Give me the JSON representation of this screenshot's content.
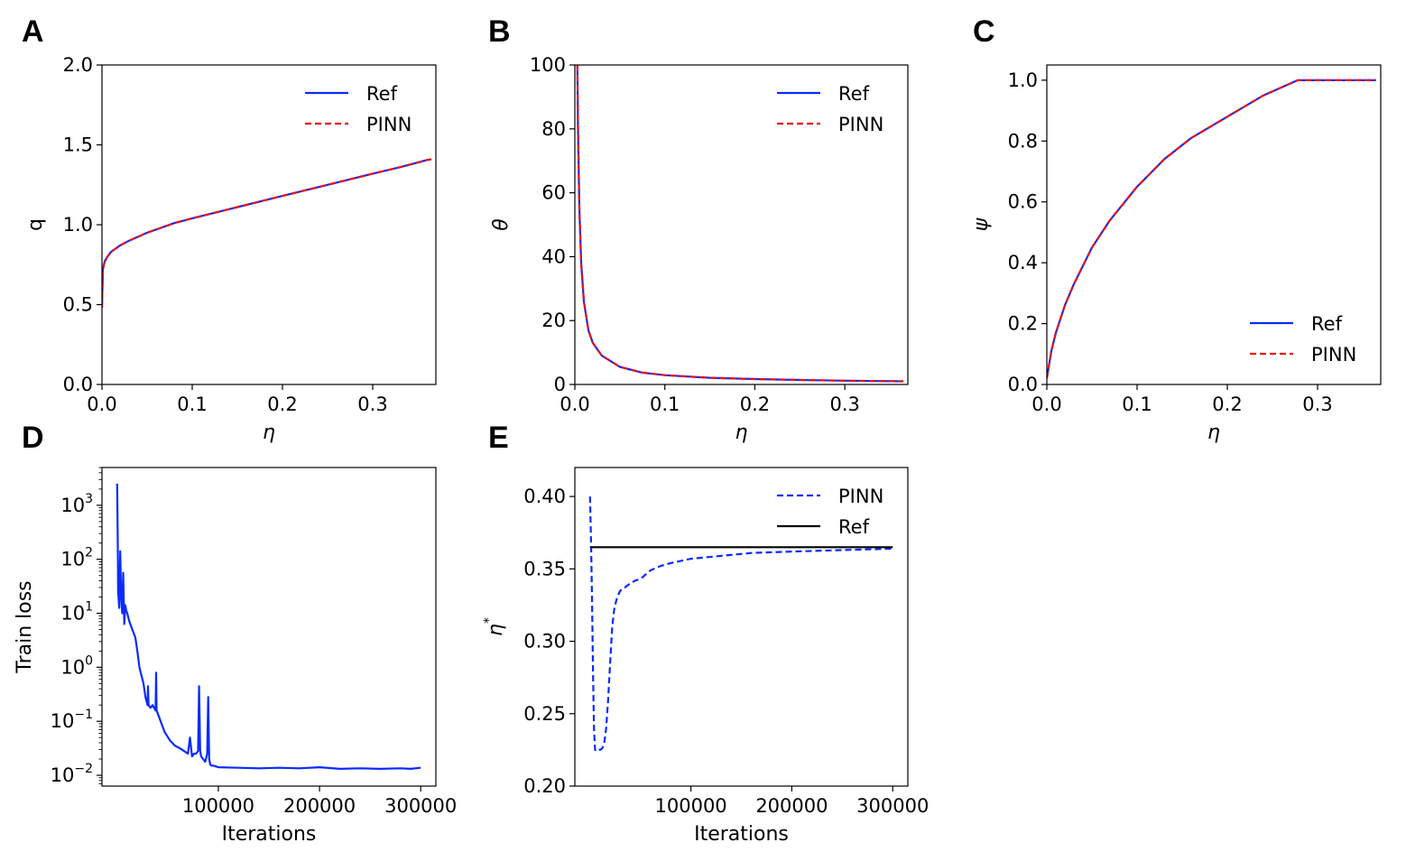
{
  "colors": {
    "ref": "#0a2bff",
    "pinn": "#e8101a",
    "black": "#000000"
  },
  "chart_data": [
    {
      "id": "A",
      "panel_label": "A",
      "type": "line",
      "xlabel": "η",
      "ylabel": "q",
      "xlim": [
        0,
        0.37
      ],
      "ylim": [
        0,
        2.0
      ],
      "xticks": [
        0.0,
        0.1,
        0.2,
        0.3
      ],
      "xtick_labels": [
        "0.0",
        "0.1",
        "0.2",
        "0.3"
      ],
      "yticks": [
        0.0,
        0.5,
        1.0,
        1.5,
        2.0
      ],
      "ytick_labels": [
        "0.0",
        "0.5",
        "1.0",
        "1.5",
        "2.0"
      ],
      "legend": [
        "Ref",
        "PINN"
      ],
      "legend_position": "top-right",
      "series": [
        {
          "name": "Ref",
          "style": "solid",
          "x": [
            0,
            0.001,
            0.003,
            0.006,
            0.01,
            0.02,
            0.03,
            0.05,
            0.08,
            0.1,
            0.15,
            0.2,
            0.25,
            0.3,
            0.33,
            0.35,
            0.36,
            0.365
          ],
          "y": [
            0.48,
            0.72,
            0.77,
            0.8,
            0.83,
            0.87,
            0.9,
            0.95,
            1.01,
            1.04,
            1.11,
            1.18,
            1.25,
            1.32,
            1.36,
            1.39,
            1.405,
            1.41
          ]
        },
        {
          "name": "PINN",
          "style": "dashed",
          "x": [
            0,
            0.001,
            0.003,
            0.006,
            0.01,
            0.02,
            0.03,
            0.05,
            0.08,
            0.1,
            0.15,
            0.2,
            0.25,
            0.3,
            0.33,
            0.35,
            0.36,
            0.365
          ],
          "y": [
            0.48,
            0.72,
            0.77,
            0.8,
            0.83,
            0.87,
            0.9,
            0.95,
            1.01,
            1.04,
            1.11,
            1.18,
            1.25,
            1.32,
            1.36,
            1.39,
            1.405,
            1.41
          ]
        }
      ]
    },
    {
      "id": "B",
      "panel_label": "B",
      "type": "line",
      "xlabel": "η",
      "ylabel": "θ",
      "xlim": [
        0,
        0.37
      ],
      "ylim": [
        0,
        100
      ],
      "xticks": [
        0.0,
        0.1,
        0.2,
        0.3
      ],
      "xtick_labels": [
        "0.0",
        "0.1",
        "0.2",
        "0.3"
      ],
      "yticks": [
        0,
        20,
        40,
        60,
        80,
        100
      ],
      "ytick_labels": [
        "0",
        "20",
        "40",
        "60",
        "80",
        "100"
      ],
      "legend": [
        "Ref",
        "PINN"
      ],
      "legend_position": "top-right",
      "series": [
        {
          "name": "Ref",
          "style": "solid",
          "x": [
            0.0028,
            0.0035,
            0.005,
            0.007,
            0.01,
            0.015,
            0.02,
            0.03,
            0.05,
            0.075,
            0.1,
            0.15,
            0.2,
            0.25,
            0.3,
            0.365
          ],
          "y": [
            100,
            80,
            55,
            38,
            26,
            17,
            13,
            9,
            5.5,
            3.7,
            2.9,
            2.1,
            1.7,
            1.4,
            1.2,
            1.0
          ]
        },
        {
          "name": "PINN",
          "style": "dashed",
          "x": [
            0.0028,
            0.0035,
            0.005,
            0.007,
            0.01,
            0.015,
            0.02,
            0.03,
            0.05,
            0.075,
            0.1,
            0.15,
            0.2,
            0.25,
            0.3,
            0.365
          ],
          "y": [
            100,
            80,
            55,
            38,
            26,
            17,
            13,
            9,
            5.5,
            3.7,
            2.9,
            2.1,
            1.7,
            1.4,
            1.2,
            1.0
          ]
        }
      ]
    },
    {
      "id": "C",
      "panel_label": "C",
      "type": "line",
      "xlabel": "η",
      "ylabel": "ψ",
      "xlim": [
        0,
        0.37
      ],
      "ylim": [
        0,
        1.05
      ],
      "xticks": [
        0.0,
        0.1,
        0.2,
        0.3
      ],
      "xtick_labels": [
        "0.0",
        "0.1",
        "0.2",
        "0.3"
      ],
      "yticks": [
        0.0,
        0.2,
        0.4,
        0.6,
        0.8,
        1.0
      ],
      "ytick_labels": [
        "0.0",
        "0.2",
        "0.4",
        "0.6",
        "0.8",
        "1.0"
      ],
      "legend": [
        "Ref",
        "PINN"
      ],
      "legend_position": "bottom-right",
      "series": [
        {
          "name": "Ref",
          "style": "solid",
          "x": [
            0,
            0.005,
            0.01,
            0.02,
            0.03,
            0.05,
            0.07,
            0.1,
            0.13,
            0.16,
            0.2,
            0.24,
            0.278,
            0.3,
            0.33,
            0.365
          ],
          "y": [
            0.02,
            0.11,
            0.17,
            0.26,
            0.33,
            0.45,
            0.54,
            0.65,
            0.74,
            0.81,
            0.88,
            0.95,
            1.0,
            1.0,
            1.0,
            1.0
          ]
        },
        {
          "name": "PINN",
          "style": "dashed",
          "x": [
            0,
            0.005,
            0.01,
            0.02,
            0.03,
            0.05,
            0.07,
            0.1,
            0.13,
            0.16,
            0.2,
            0.24,
            0.278,
            0.3,
            0.33,
            0.365
          ],
          "y": [
            0.02,
            0.11,
            0.17,
            0.26,
            0.33,
            0.45,
            0.54,
            0.65,
            0.74,
            0.81,
            0.88,
            0.95,
            1.0,
            1.0,
            1.0,
            1.0
          ]
        }
      ]
    },
    {
      "id": "D",
      "panel_label": "D",
      "type": "line",
      "yscale": "log",
      "xlabel": "Iterations",
      "ylabel": "Train loss",
      "xlim": [
        -15000,
        315000
      ],
      "ylim_log10": [
        -2.2,
        3.7
      ],
      "xticks": [
        100000,
        200000,
        300000
      ],
      "xtick_labels": [
        "100000",
        "200000",
        "300000"
      ],
      "yticks_log10": [
        -2,
        -1,
        0,
        1,
        2,
        3
      ],
      "ytick_base": "10",
      "ytick_exponents": [
        "−2",
        "−1",
        "0",
        "1",
        "2",
        "3"
      ],
      "legend": [],
      "series": [
        {
          "name": "Train loss",
          "style": "solid",
          "x": [
            0,
            500,
            1000,
            2000,
            3000,
            4000,
            5000,
            6000,
            7000,
            8000,
            9000,
            10000,
            12000,
            15000,
            18000,
            20000,
            22000,
            24000,
            26000,
            28000,
            30000,
            30500,
            31000,
            33000,
            35000,
            38000,
            38500,
            39000,
            41000,
            43000,
            47000,
            52000,
            57000,
            62000,
            66000,
            70000,
            72000,
            74000,
            76000,
            78000,
            80000,
            81000,
            82000,
            83000,
            85000,
            87000,
            89000,
            90000,
            91000,
            92000,
            93000,
            95000,
            100000,
            120000,
            140000,
            160000,
            180000,
            200000,
            220000,
            240000,
            260000,
            280000,
            290000,
            300000
          ],
          "log10y": [
            3.4,
            2.5,
            1.4,
            1.1,
            2.15,
            1.3,
            1.0,
            1.75,
            0.8,
            1.15,
            1.05,
            1.0,
            0.85,
            0.7,
            0.55,
            0.3,
            0.0,
            -0.15,
            -0.3,
            -0.55,
            -0.7,
            -0.35,
            -0.7,
            -0.75,
            -0.7,
            -0.8,
            -0.1,
            -0.8,
            -0.9,
            -1.0,
            -1.2,
            -1.35,
            -1.45,
            -1.5,
            -1.55,
            -1.6,
            -1.3,
            -1.65,
            -1.6,
            -1.6,
            -1.55,
            -0.35,
            -1.55,
            -1.65,
            -1.7,
            -1.75,
            -1.6,
            -0.55,
            -1.7,
            -1.8,
            -1.82,
            -1.82,
            -1.85,
            -1.86,
            -1.87,
            -1.86,
            -1.87,
            -1.85,
            -1.88,
            -1.87,
            -1.88,
            -1.87,
            -1.88,
            -1.86
          ]
        }
      ]
    },
    {
      "id": "E",
      "panel_label": "E",
      "type": "line",
      "xlabel": "Iterations",
      "ylabel": "η",
      "ylabel_sup": "*",
      "xlim": [
        -15000,
        315000
      ],
      "ylim": [
        0.2,
        0.42
      ],
      "xticks": [
        100000,
        200000,
        300000
      ],
      "xtick_labels": [
        "100000",
        "200000",
        "300000"
      ],
      "yticks": [
        0.2,
        0.25,
        0.3,
        0.35,
        0.4
      ],
      "ytick_labels": [
        "0.20",
        "0.25",
        "0.30",
        "0.35",
        "0.40"
      ],
      "legend": [
        "PINN",
        "Ref"
      ],
      "legend_position": "top-right",
      "series": [
        {
          "name": "PINN",
          "style": "dashed",
          "color": "ref",
          "x": [
            0,
            1000,
            2000,
            3000,
            4000,
            5000,
            6000,
            8000,
            10000,
            12000,
            14000,
            16000,
            18000,
            20000,
            22000,
            24000,
            26000,
            28000,
            30000,
            33000,
            36000,
            40000,
            45000,
            50000,
            55000,
            60000,
            70000,
            80000,
            100000,
            130000,
            160000,
            200000,
            250000,
            300000
          ],
          "y": [
            0.4,
            0.37,
            0.33,
            0.28,
            0.24,
            0.225,
            0.225,
            0.226,
            0.225,
            0.226,
            0.229,
            0.24,
            0.26,
            0.285,
            0.31,
            0.322,
            0.328,
            0.332,
            0.335,
            0.336,
            0.338,
            0.34,
            0.342,
            0.343,
            0.346,
            0.349,
            0.352,
            0.354,
            0.357,
            0.359,
            0.361,
            0.362,
            0.363,
            0.364
          ]
        },
        {
          "name": "Ref",
          "style": "solid",
          "color": "black",
          "x": [
            0,
            300000
          ],
          "y": [
            0.365,
            0.365
          ]
        }
      ]
    }
  ]
}
